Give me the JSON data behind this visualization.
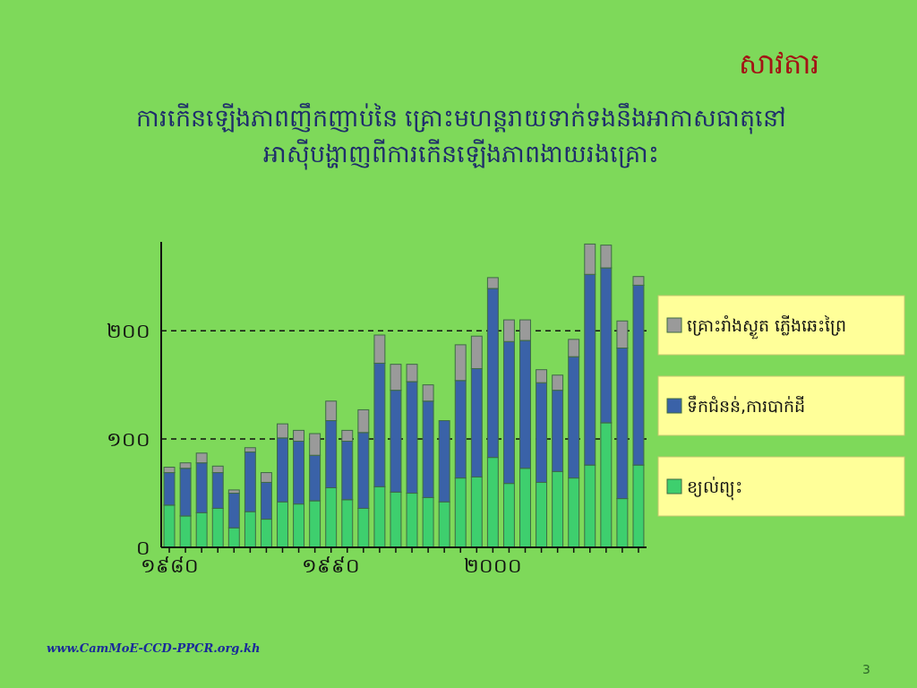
{
  "chart_data": {
    "type": "bar",
    "stacked": true,
    "title": "សាវតារ",
    "subtitle": "ការកើនឡើងភាពញឹកញាប់នៃ គ្រោះមហន្តរាយទាក់ទងនឹងអាកាសធាតុនៅអាស៊ីបង្ហាញពីការកើនឡើងភាពងាយរងគ្រោះ",
    "categories": [
      "១៩៨០",
      null,
      null,
      null,
      null,
      null,
      null,
      null,
      null,
      null,
      "១៩៩០",
      null,
      null,
      null,
      null,
      null,
      null,
      null,
      null,
      null,
      "២០០០",
      null,
      null,
      null,
      null,
      null,
      null,
      null,
      null,
      null
    ],
    "series": [
      {
        "name": "ខ្យល់ព្យុះ",
        "color": "#3ecf6e",
        "values": [
          39,
          29,
          32,
          36,
          18,
          33,
          26,
          42,
          40,
          43,
          55,
          44,
          36,
          56,
          51,
          50,
          46,
          42,
          64,
          65,
          83,
          59,
          73,
          60,
          70,
          64,
          76,
          115,
          45,
          76
        ]
      },
      {
        "name": "ទឹកជំនន់,ការបាក់ដី",
        "color": "#3a62a8",
        "values": [
          30,
          44,
          46,
          33,
          32,
          55,
          34,
          59,
          58,
          42,
          62,
          54,
          70,
          114,
          94,
          103,
          89,
          75,
          90,
          100,
          156,
          131,
          118,
          92,
          75,
          112,
          176,
          143,
          139,
          166
        ]
      },
      {
        "name": "គ្រោះរាំងស្ងួត ភ្លើងឆេះព្រៃ",
        "color": "#9a9a9a",
        "values": [
          5,
          5,
          9,
          6,
          3,
          4,
          9,
          13,
          10,
          20,
          18,
          10,
          21,
          26,
          24,
          16,
          15,
          null,
          33,
          30,
          10,
          20,
          19,
          12,
          14,
          16,
          28,
          21,
          25,
          8
        ]
      }
    ],
    "ylim": [
      0,
      282
    ],
    "yticks": [
      {
        "value": 0,
        "label": "០"
      },
      {
        "value": 100,
        "label": "១០០"
      },
      {
        "value": 200,
        "label": "២០០"
      }
    ],
    "grid": "y",
    "legend": "right",
    "annotations": [
      "www.CamMoE-CCD-PPCR.org.kh",
      "3"
    ]
  }
}
